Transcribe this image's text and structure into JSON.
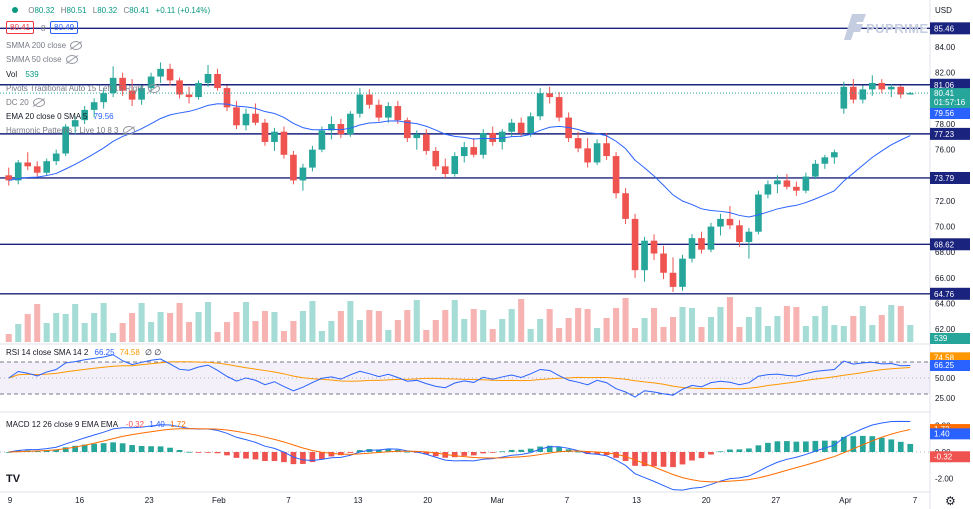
{
  "header": {
    "o_label": "O",
    "o_value": "80.32",
    "h_label": "H",
    "h_value": "80.51",
    "l_label": "L",
    "l_value": "80.32",
    "c_label": "C",
    "c_value": "80.41",
    "change": "+0.11 (+0.14%)",
    "currency": "USD",
    "bid": "80.41",
    "spread": "8",
    "ask": "80.49"
  },
  "legend": {
    "smma200": "SMMA 200 close",
    "smma50": "SMMA 50 close",
    "vol_label": "Vol",
    "vol_value": "539",
    "pivots": "Pivots Traditional Auto 15 Left 15 Right",
    "dc": "DC 20",
    "ema_label": "EMA 20 close 0 SMA 5",
    "ema_value": "79.56",
    "harmonic": "Harmonic Patterns - Live 10 8 3",
    "rsi_label": "RSI 14 close SMA 14 2",
    "rsi_value": "66.25",
    "rsi_sma_value": "74.58",
    "rsi_extra": "∅ ∅",
    "macd_label": "MACD 12 26 close 9 EMA EMA",
    "macd_hist": "-0.32",
    "macd_line": "1.40",
    "macd_signal": "1.72"
  },
  "brand": {
    "name": "PUPRIME"
  },
  "chart_data": {
    "type": "candlestick",
    "price_axis": {
      "ticks": [
        84.0,
        82.0,
        80.0,
        78.0,
        76.0,
        74.0,
        72.0,
        70.0,
        68.0,
        66.0,
        64.0,
        62.0
      ],
      "range": [
        61,
        86.5
      ]
    },
    "horizontal_levels": [
      85.46,
      81.06,
      77.23,
      73.79,
      68.62,
      64.76
    ],
    "price_labels": {
      "last": "80.41",
      "countdown": "01:57:16",
      "ema": "79.56",
      "volume": "539"
    },
    "x_labels": [
      "9",
      "16",
      "23",
      "Feb",
      "7",
      "13",
      "20",
      "Mar",
      "7",
      "13",
      "20",
      "27",
      "Apr",
      "7"
    ],
    "ohlc": [
      [
        74.0,
        74.6,
        73.2,
        73.6
      ],
      [
        73.6,
        75.2,
        73.3,
        75.0
      ],
      [
        75.0,
        75.8,
        74.4,
        74.7
      ],
      [
        74.7,
        75.1,
        73.9,
        74.2
      ],
      [
        74.2,
        75.3,
        74.0,
        75.1
      ],
      [
        75.1,
        76.0,
        74.8,
        75.7
      ],
      [
        75.7,
        78.0,
        75.5,
        77.8
      ],
      [
        77.8,
        78.6,
        77.2,
        78.3
      ],
      [
        78.3,
        79.4,
        78.0,
        79.1
      ],
      [
        79.1,
        80.0,
        78.5,
        79.7
      ],
      [
        79.7,
        80.8,
        79.2,
        80.4
      ],
      [
        80.4,
        82.5,
        80.1,
        81.6
      ],
      [
        81.6,
        82.0,
        80.2,
        80.6
      ],
      [
        80.6,
        81.5,
        79.4,
        79.9
      ],
      [
        79.9,
        81.0,
        79.5,
        80.8
      ],
      [
        80.8,
        82.0,
        80.5,
        81.7
      ],
      [
        81.7,
        82.8,
        81.2,
        82.3
      ],
      [
        82.3,
        82.7,
        81.0,
        81.4
      ],
      [
        81.4,
        81.6,
        80.0,
        80.3
      ],
      [
        80.3,
        80.9,
        79.6,
        80.1
      ],
      [
        80.1,
        81.4,
        79.9,
        81.2
      ],
      [
        81.2,
        82.6,
        80.9,
        81.9
      ],
      [
        81.9,
        82.3,
        80.6,
        80.8
      ],
      [
        80.8,
        81.0,
        79.0,
        79.3
      ],
      [
        79.3,
        79.8,
        77.6,
        77.9
      ],
      [
        77.9,
        79.2,
        77.5,
        78.8
      ],
      [
        78.8,
        79.6,
        77.9,
        78.1
      ],
      [
        78.1,
        78.4,
        76.3,
        76.6
      ],
      [
        76.6,
        77.7,
        75.9,
        77.4
      ],
      [
        77.4,
        77.8,
        75.3,
        75.6
      ],
      [
        75.6,
        75.9,
        73.3,
        73.6
      ],
      [
        73.6,
        74.9,
        72.8,
        74.6
      ],
      [
        74.6,
        76.3,
        74.3,
        76.0
      ],
      [
        76.0,
        77.8,
        75.8,
        77.5
      ],
      [
        77.5,
        78.6,
        76.8,
        78.0
      ],
      [
        78.0,
        78.4,
        76.9,
        77.2
      ],
      [
        77.2,
        79.0,
        77.0,
        78.8
      ],
      [
        78.8,
        80.8,
        78.5,
        80.3
      ],
      [
        80.3,
        80.7,
        79.2,
        79.5
      ],
      [
        79.5,
        79.9,
        78.2,
        78.5
      ],
      [
        78.5,
        79.7,
        78.1,
        79.4
      ],
      [
        79.4,
        79.8,
        78.0,
        78.3
      ],
      [
        78.3,
        78.5,
        76.6,
        76.9
      ],
      [
        76.9,
        77.5,
        76.0,
        77.2
      ],
      [
        77.2,
        77.6,
        75.6,
        75.9
      ],
      [
        75.9,
        76.2,
        74.4,
        74.7
      ],
      [
        74.7,
        75.3,
        73.8,
        74.1
      ],
      [
        74.1,
        75.8,
        73.9,
        75.5
      ],
      [
        75.5,
        76.6,
        75.0,
        76.2
      ],
      [
        76.2,
        76.9,
        75.4,
        75.6
      ],
      [
        75.6,
        77.6,
        75.3,
        77.3
      ],
      [
        77.3,
        77.8,
        76.3,
        76.6
      ],
      [
        76.6,
        77.6,
        76.0,
        77.4
      ],
      [
        77.4,
        78.4,
        77.0,
        78.1
      ],
      [
        78.1,
        78.5,
        77.0,
        77.3
      ],
      [
        77.3,
        78.9,
        77.0,
        78.6
      ],
      [
        78.6,
        80.8,
        78.3,
        80.4
      ],
      [
        80.4,
        80.9,
        79.6,
        80.1
      ],
      [
        80.1,
        80.5,
        78.2,
        78.5
      ],
      [
        78.5,
        78.9,
        76.6,
        76.9
      ],
      [
        76.9,
        77.4,
        75.8,
        76.1
      ],
      [
        76.1,
        76.9,
        74.6,
        75.0
      ],
      [
        75.0,
        76.8,
        74.8,
        76.5
      ],
      [
        76.5,
        77.3,
        75.2,
        75.5
      ],
      [
        75.5,
        75.8,
        72.2,
        72.6
      ],
      [
        72.6,
        73.0,
        70.2,
        70.6
      ],
      [
        70.6,
        71.0,
        66.0,
        66.6
      ],
      [
        66.6,
        69.2,
        65.7,
        68.9
      ],
      [
        68.9,
        69.4,
        67.4,
        67.9
      ],
      [
        67.9,
        68.5,
        65.9,
        66.4
      ],
      [
        66.4,
        67.6,
        64.9,
        65.3
      ],
      [
        65.3,
        67.8,
        65.0,
        67.5
      ],
      [
        67.5,
        69.4,
        67.2,
        69.1
      ],
      [
        69.1,
        69.6,
        67.9,
        68.2
      ],
      [
        68.2,
        70.3,
        68.0,
        70.0
      ],
      [
        70.0,
        71.0,
        69.3,
        70.6
      ],
      [
        70.6,
        71.6,
        69.8,
        70.1
      ],
      [
        70.1,
        70.5,
        68.4,
        68.8
      ],
      [
        68.8,
        69.9,
        67.5,
        69.6
      ],
      [
        69.6,
        72.8,
        69.4,
        72.5
      ],
      [
        72.5,
        73.6,
        72.2,
        73.3
      ],
      [
        73.3,
        74.0,
        72.6,
        73.6
      ],
      [
        73.6,
        74.1,
        72.9,
        73.1
      ],
      [
        73.1,
        73.5,
        72.4,
        72.8
      ],
      [
        72.8,
        74.2,
        72.6,
        73.9
      ],
      [
        73.9,
        75.2,
        73.7,
        74.9
      ],
      [
        74.9,
        75.6,
        74.5,
        75.4
      ],
      [
        75.4,
        76.0,
        74.9,
        75.8
      ],
      [
        79.2,
        81.3,
        78.8,
        80.9
      ],
      [
        80.9,
        81.5,
        79.6,
        79.9
      ],
      [
        79.9,
        81.0,
        79.6,
        80.7
      ],
      [
        80.7,
        81.8,
        80.2,
        81.2
      ],
      [
        81.2,
        81.5,
        80.4,
        80.7
      ],
      [
        80.7,
        81.1,
        80.1,
        80.9
      ],
      [
        80.9,
        81.0,
        80.0,
        80.3
      ],
      [
        80.3,
        80.5,
        80.3,
        80.41
      ]
    ],
    "ema20_end": 79.56,
    "rsi": {
      "axis_ticks": [
        75.0,
        50.0,
        25.0
      ],
      "bands": [
        70,
        30
      ],
      "last": 66.25,
      "sma_last": 74.58
    },
    "macd": {
      "axis_ticks": [
        2.0,
        0.0,
        -2.0
      ],
      "macd_last": 1.4,
      "signal_last": 1.72,
      "hist_last": -0.32
    }
  },
  "colors": {
    "up": "#26a69a",
    "down": "#ef5350",
    "ema": "#2962ff",
    "level": "#1a237e",
    "rsi": "#2962ff",
    "rsi_sma": "#ff9800",
    "macd": "#2962ff",
    "signal": "#ff6d00"
  }
}
